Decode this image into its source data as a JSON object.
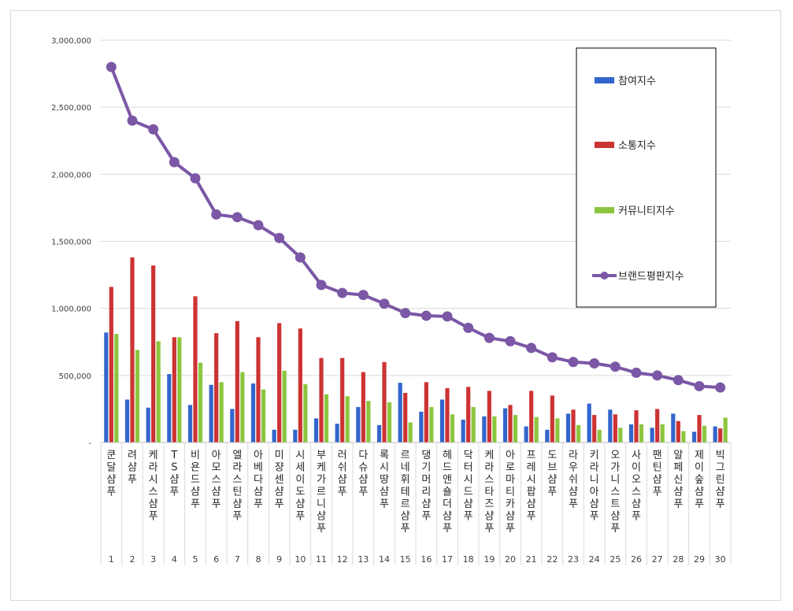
{
  "chart_data": {
    "type": "bar",
    "title": "",
    "xlabel": "",
    "ylabel": "",
    "ylim": [
      0,
      3000000
    ],
    "yticks": [
      0,
      500000,
      1000000,
      1500000,
      2000000,
      2500000,
      3000000
    ],
    "ytick_labels": [
      "-",
      "500,000",
      "1,000,000",
      "1,500,000",
      "2,000,000",
      "2,500,000",
      "3,000,000"
    ],
    "grid": "horizontal",
    "legend_position": "right",
    "categories": [
      "쿤달샴푸",
      "려샴푸",
      "케라시스샴푸",
      "TS샴푸",
      "비욘드샴푸",
      "아모스샴푸",
      "엘라스틴샴푸",
      "아베다샴푸",
      "미쟝센샴푸",
      "시세이도샴푸",
      "부케가르니샴푸",
      "러쉬샴푸",
      "다슈샴푸",
      "록시땅샴푸",
      "르네휘테르샴푸",
      "댕기머리샴푸",
      "헤드앤숄더샴푸",
      "닥터시드샴푸",
      "케라스타즈샴푸",
      "아로마티카샴푸",
      "프레시팝샴푸",
      "도브샴푸",
      "라우쉬샴푸",
      "키라니아샴푸",
      "오가니스트샴푸",
      "사이오스샴푸",
      "팬틴샴푸",
      "알페신샴푸",
      "제이숲샴푸",
      "빅그린샴푸"
    ],
    "ranks": [
      "1",
      "2",
      "3",
      "4",
      "5",
      "6",
      "7",
      "8",
      "9",
      "10",
      "11",
      "12",
      "13",
      "14",
      "15",
      "16",
      "17",
      "18",
      "19",
      "20",
      "21",
      "22",
      "23",
      "24",
      "25",
      "26",
      "27",
      "28",
      "29",
      "30"
    ],
    "series": [
      {
        "name": "참여지수",
        "kind": "bar",
        "color": "#3366cc",
        "values": [
          820000,
          320000,
          260000,
          510000,
          280000,
          430000,
          250000,
          440000,
          95000,
          95000,
          180000,
          140000,
          265000,
          130000,
          445000,
          230000,
          320000,
          170000,
          195000,
          255000,
          120000,
          95000,
          215000,
          290000,
          245000,
          135000,
          110000,
          215000,
          80000,
          120000
        ]
      },
      {
        "name": "소통지수",
        "kind": "bar",
        "color": "#cc3333",
        "values": [
          1160000,
          1380000,
          1320000,
          785000,
          1090000,
          815000,
          905000,
          785000,
          890000,
          850000,
          630000,
          630000,
          525000,
          600000,
          370000,
          450000,
          405000,
          415000,
          385000,
          280000,
          385000,
          350000,
          245000,
          205000,
          210000,
          240000,
          250000,
          160000,
          205000,
          105000
        ]
      },
      {
        "name": "커뮤니티지수",
        "kind": "bar",
        "color": "#8cc63f",
        "values": [
          810000,
          690000,
          755000,
          785000,
          595000,
          450000,
          525000,
          395000,
          535000,
          435000,
          360000,
          345000,
          310000,
          300000,
          150000,
          265000,
          210000,
          265000,
          195000,
          205000,
          190000,
          180000,
          130000,
          95000,
          110000,
          135000,
          135000,
          85000,
          125000,
          185000
        ]
      },
      {
        "name": "브랜드평판지수",
        "kind": "line",
        "color": "#7b57a6",
        "values": [
          2800000,
          2400000,
          2335000,
          2090000,
          1970000,
          1700000,
          1680000,
          1620000,
          1525000,
          1380000,
          1175000,
          1115000,
          1100000,
          1035000,
          965000,
          945000,
          940000,
          855000,
          780000,
          755000,
          705000,
          635000,
          600000,
          590000,
          565000,
          520000,
          500000,
          465000,
          420000,
          410000
        ]
      }
    ]
  }
}
